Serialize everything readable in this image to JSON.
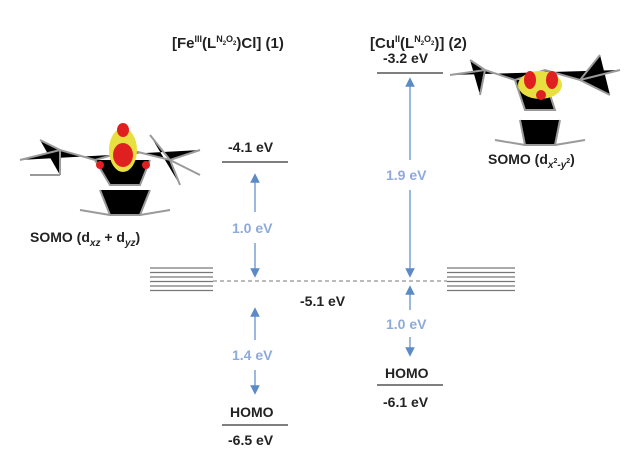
{
  "complexes": [
    {
      "title": [
        "[Fe",
        "III",
        "(L",
        "N",
        "2",
        "O",
        "2",
        ")Cl] (1)"
      ],
      "upper": "-4.1 eV",
      "gaps": [
        "1.0 eV",
        "1.4 eV"
      ],
      "homo": {
        "label": "HOMO",
        "energy": "-6.5 eV"
      },
      "somo": [
        "SOMO (d",
        "xz",
        " + d",
        "yz",
        ")"
      ]
    },
    {
      "title": [
        "[Cu",
        "II",
        "(L",
        "N",
        "2",
        "O",
        "2",
        ")] (2)"
      ],
      "upper": "-3.2 eV",
      "gaps": [
        "1.9 eV",
        "1.0 eV"
      ],
      "homo": {
        "label": "HOMO",
        "energy": "-6.1 eV"
      },
      "somo": [
        "SOMO (d",
        "x",
        "2",
        "-y",
        "2",
        ")"
      ]
    }
  ],
  "reference": "-5.1 eV"
}
